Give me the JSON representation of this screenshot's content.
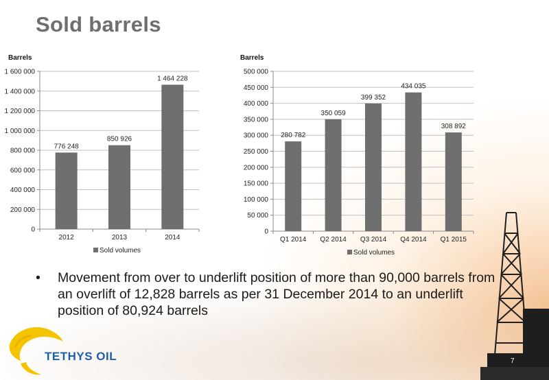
{
  "slide": {
    "title": "Sold barrels",
    "bullet": "Movement from over to underlift position of more than 90,000 barrels from an overlift of 12,828 barrels as per 31 December 2014 to an underlift position of 80,924 barrels",
    "bullet_marker": "•",
    "page_number": "7"
  },
  "logo": {
    "text": "TETHYS OIL",
    "color": "#1d5fa8",
    "accent": "#f5c400"
  },
  "colors": {
    "bar": "#6f6f6f",
    "grid": "#bfbfbf"
  },
  "chart_data": [
    {
      "type": "bar",
      "ylabel": "Barrels",
      "categories": [
        "2012",
        "2013",
        "2014"
      ],
      "series": [
        {
          "name": "Sold volumes",
          "values": [
            776248,
            850926,
            1464228
          ]
        }
      ],
      "value_labels": [
        "776 248",
        "850 926",
        "1 464 228"
      ],
      "ylim": [
        0,
        1600000
      ],
      "yticks": [
        0,
        200000,
        400000,
        600000,
        800000,
        1000000,
        1200000,
        1400000,
        1600000
      ],
      "ytick_labels": [
        "0",
        "200 000",
        "400 000",
        "600 000",
        "800 000",
        "1 000 000",
        "1 200 000",
        "1 400 000",
        "1 600 000"
      ],
      "grid": true,
      "legend": "bottom"
    },
    {
      "type": "bar",
      "ylabel": "Barrels",
      "categories": [
        "Q1 2014",
        "Q2 2014",
        "Q3 2014",
        "Q4 2014",
        "Q1 2015"
      ],
      "series": [
        {
          "name": "Sold volumes",
          "values": [
            280782,
            350059,
            399352,
            434035,
            308892
          ]
        }
      ],
      "value_labels": [
        "280 782",
        "350 059",
        "399 352",
        "434 035",
        "308 892"
      ],
      "ylim": [
        0,
        500000
      ],
      "yticks": [
        0,
        50000,
        100000,
        150000,
        200000,
        250000,
        300000,
        350000,
        400000,
        450000,
        500000
      ],
      "ytick_labels": [
        "0",
        "50 000",
        "100 000",
        "150 000",
        "200 000",
        "250 000",
        "300 000",
        "350 000",
        "400 000",
        "450 000",
        "500 000"
      ],
      "grid": true,
      "legend": "bottom"
    }
  ]
}
